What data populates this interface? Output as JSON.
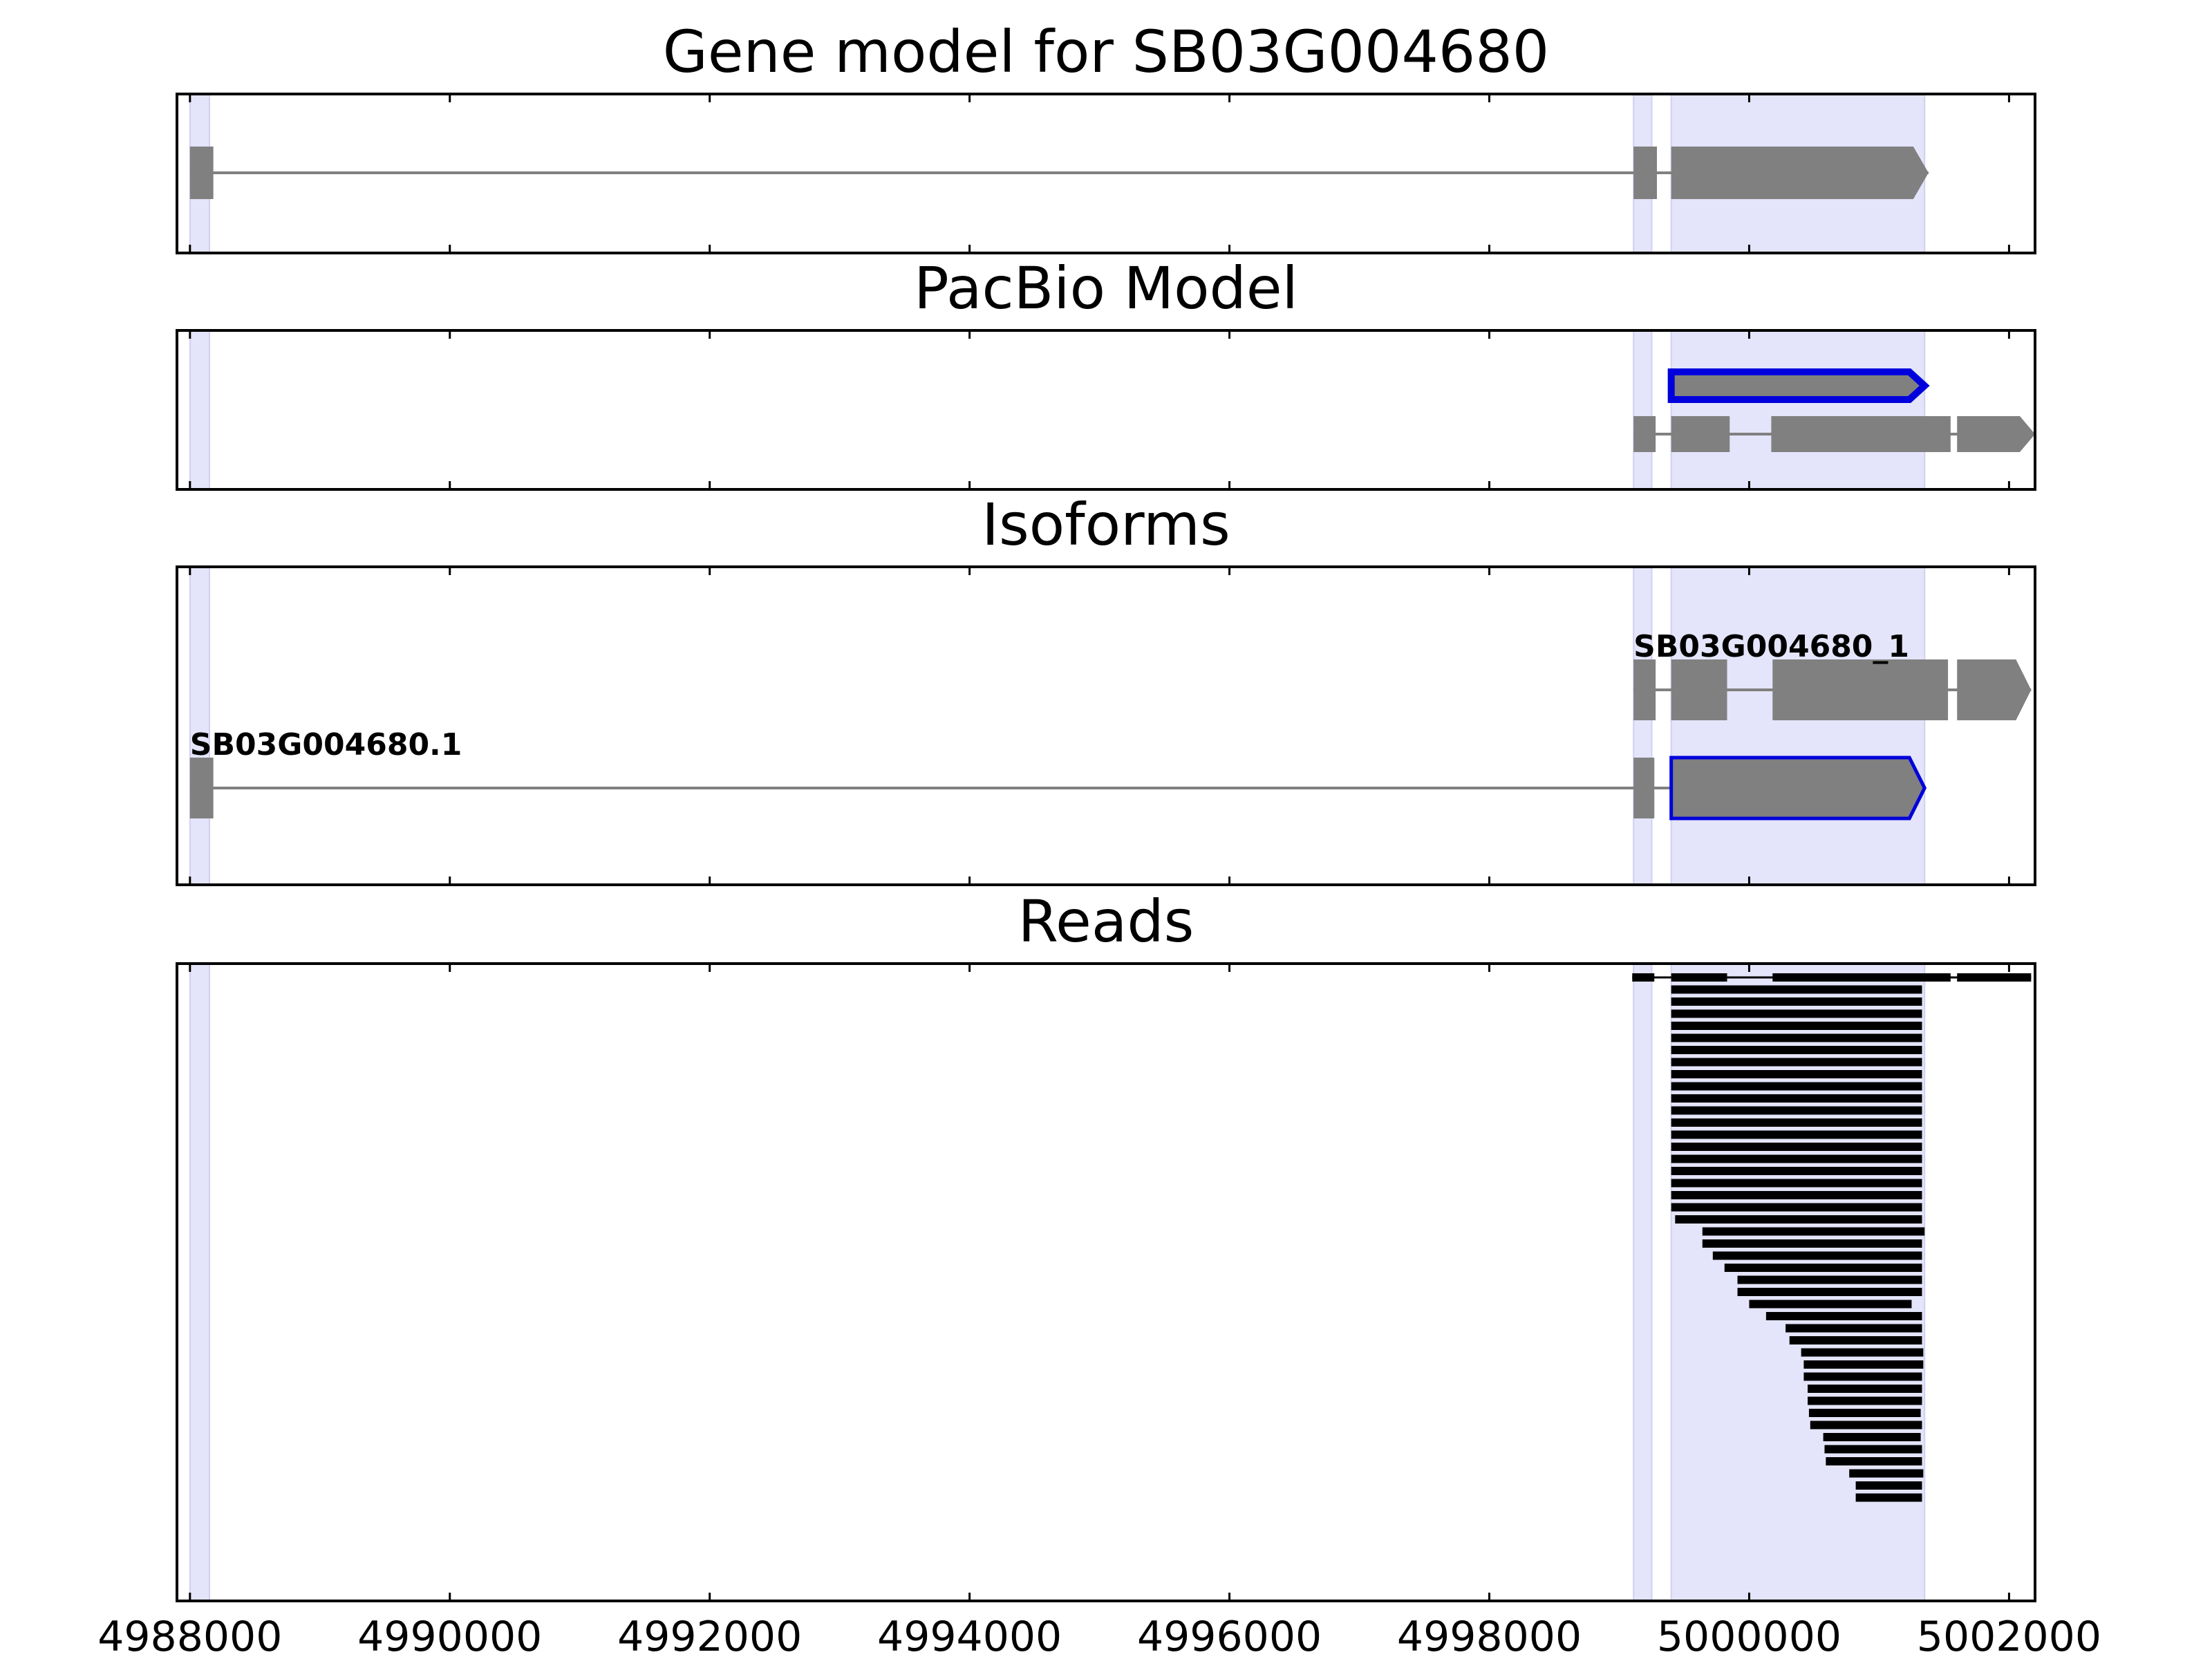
{
  "chart_data": {
    "type": "gene-track",
    "xlim": [
      4987900,
      5002200
    ],
    "xticks": [
      4988000,
      4990000,
      4992000,
      4994000,
      4996000,
      4998000,
      5000000,
      5002000
    ],
    "xtick_labels": [
      "4988000",
      "4990000",
      "4992000",
      "4994000",
      "4996000",
      "4998000",
      "5000000",
      "5002000"
    ],
    "highlight_regions": [
      [
        4988000,
        4988150
      ],
      [
        4999110,
        4999250
      ],
      [
        4999400,
        5001350
      ]
    ],
    "panels": [
      {
        "title": "Gene model for SB03G004680",
        "models": [
          {
            "label": "",
            "exons": [
              [
                4988000,
                4988180
              ],
              [
                4999110,
                4999290
              ],
              [
                4999400,
                5001380
              ]
            ],
            "style": "gray"
          }
        ]
      },
      {
        "title": "PacBio Model",
        "models": [
          {
            "label": "",
            "exons": [
              [
                4999400,
                5001350
              ]
            ],
            "style": "blue-outline"
          },
          {
            "label": "",
            "exons": [
              [
                4999110,
                4999280
              ],
              [
                4999400,
                4999850
              ],
              [
                5000170,
                5001550
              ],
              [
                5001600,
                5002200
              ]
            ],
            "style": "gray"
          }
        ]
      },
      {
        "title": "Isoforms",
        "models": [
          {
            "label": "SB03G004680_1",
            "exons": [
              [
                4999110,
                4999280
              ],
              [
                4999400,
                4999830
              ],
              [
                5000180,
                5001530
              ],
              [
                5001600,
                5002170
              ]
            ],
            "style": "gray"
          },
          {
            "label": "SB03G004680.1",
            "exons": [
              [
                4988000,
                4988180
              ],
              [
                4999110,
                4999270
              ],
              [
                4999400,
                5001350
              ]
            ],
            "style": "gray-blue-last"
          }
        ]
      },
      {
        "title": "Reads",
        "reads": [
          [
            [
              4999100,
              4999270
            ],
            [
              4999400,
              4999830
            ],
            [
              5000180,
              5001550
            ],
            [
              5001600,
              5002170
            ]
          ],
          [
            [
              4999400,
              5001330
            ]
          ],
          [
            [
              4999400,
              5001330
            ]
          ],
          [
            [
              4999400,
              5001330
            ]
          ],
          [
            [
              4999400,
              5001330
            ]
          ],
          [
            [
              4999400,
              5001330
            ]
          ],
          [
            [
              4999400,
              5001330
            ]
          ],
          [
            [
              4999400,
              5001330
            ]
          ],
          [
            [
              4999400,
              5001330
            ]
          ],
          [
            [
              4999400,
              5001330
            ]
          ],
          [
            [
              4999400,
              5001330
            ]
          ],
          [
            [
              4999400,
              5001330
            ]
          ],
          [
            [
              4999400,
              5001330
            ]
          ],
          [
            [
              4999400,
              5001330
            ]
          ],
          [
            [
              4999400,
              5001330
            ]
          ],
          [
            [
              4999400,
              5001330
            ]
          ],
          [
            [
              4999400,
              5001330
            ]
          ],
          [
            [
              4999400,
              5001330
            ]
          ],
          [
            [
              4999400,
              5001330
            ]
          ],
          [
            [
              4999400,
              5001330
            ]
          ],
          [
            [
              4999430,
              5001330
            ]
          ],
          [
            [
              4999640,
              5001350
            ]
          ],
          [
            [
              4999640,
              5001330
            ]
          ],
          [
            [
              4999720,
              5001330
            ]
          ],
          [
            [
              4999810,
              5001330
            ]
          ],
          [
            [
              4999910,
              5001330
            ]
          ],
          [
            [
              4999910,
              5001330
            ]
          ],
          [
            [
              5000000,
              5001250
            ]
          ],
          [
            [
              5000130,
              5001330
            ]
          ],
          [
            [
              5000280,
              5001330
            ]
          ],
          [
            [
              5000310,
              5001330
            ]
          ],
          [
            [
              5000400,
              5001340
            ]
          ],
          [
            [
              5000420,
              5001340
            ]
          ],
          [
            [
              5000420,
              5001330
            ]
          ],
          [
            [
              5000450,
              5001330
            ]
          ],
          [
            [
              5000450,
              5001330
            ]
          ],
          [
            [
              5000460,
              5001320
            ]
          ],
          [
            [
              5000470,
              5001330
            ]
          ],
          [
            [
              5000570,
              5001320
            ]
          ],
          [
            [
              5000580,
              5001330
            ]
          ],
          [
            [
              5000590,
              5001330
            ]
          ],
          [
            [
              5000770,
              5001340
            ]
          ],
          [
            [
              5000820,
              5001330
            ]
          ],
          [
            [
              5000820,
              5001330
            ]
          ]
        ]
      }
    ]
  },
  "colors": {
    "highlight": "#e4e4fa",
    "exon_gray": "#808080",
    "line_gray": "#808080",
    "blue": "#0000dd",
    "read": "#000000"
  }
}
